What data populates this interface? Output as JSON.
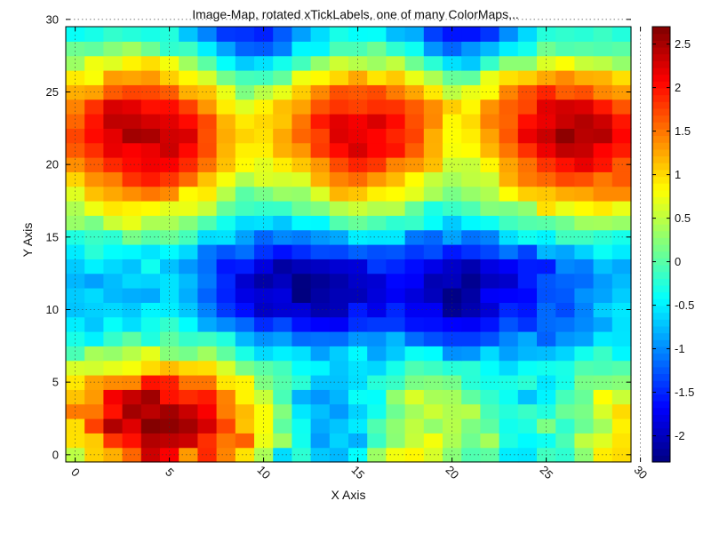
{
  "chart_data": {
    "type": "heatmap",
    "title": "Image-Map, rotated xTickLabels, one of many ColorMaps,..",
    "xlabel": "X Axis",
    "ylabel": "Y Axis",
    "xlim": [
      -0.5,
      29.5
    ],
    "ylim": [
      -0.5,
      29.5
    ],
    "xticks": [
      0,
      5,
      10,
      15,
      20,
      25,
      30
    ],
    "yticks": [
      0,
      5,
      10,
      15,
      20,
      25,
      30
    ],
    "xtick_rotation_deg": 45,
    "grid": true,
    "colormap": "jet",
    "colorbar": {
      "vmin": -2.3,
      "vmax": 2.7,
      "ticks": [
        -2,
        -1.5,
        -1,
        -0.5,
        0,
        0.5,
        1,
        1.5,
        2,
        2.5
      ],
      "tick_labels": [
        "-2",
        "-1.5",
        "-1",
        "-0.5",
        "0",
        "0.5",
        "1",
        "1.5",
        "2",
        "2.5"
      ]
    },
    "grid_size": [
      30,
      30
    ],
    "values": [
      [
        0.49,
        1.05,
        1.21,
        1.58,
        2.32,
        2.1,
        1.32,
        1.88,
        1.43,
        0.96,
        0.41,
        -0.59,
        -0.21,
        -0.69,
        -0.77,
        -0.42,
        0.34,
        0.76,
        0.86,
        0.63,
        0.24,
        -0.04,
        0.03,
        -0.51,
        -0.54,
        -0.11,
        -0.2,
        0.26,
        0.91,
        0.99
      ],
      [
        0.97,
        1.08,
        1.82,
        2.0,
        2.45,
        2.4,
        2.33,
        1.85,
        1.49,
        1.61,
        0.73,
        0.35,
        -0.34,
        -0.91,
        -0.64,
        -0.81,
        -0.14,
        0.25,
        0.54,
        0.77,
        0.42,
        0.12,
        0.39,
        -0.29,
        -0.44,
        -0.36,
        -0.06,
        0.51,
        0.66,
        0.95
      ],
      [
        0.98,
        1.76,
        2.46,
        2.23,
        2.68,
        2.63,
        2.52,
        2.28,
        1.73,
        1.12,
        0.8,
        0.04,
        -0.36,
        -0.83,
        -0.71,
        -0.52,
        -0.04,
        0.27,
        0.51,
        0.29,
        0.46,
        0.19,
        0.03,
        -0.34,
        -0.28,
        0.19,
        -0.19,
        0.1,
        0.37,
        0.89
      ],
      [
        1.48,
        1.49,
        1.99,
        2.53,
        2.41,
        2.53,
        2.34,
        2.1,
        1.46,
        1.16,
        0.8,
        0.21,
        -0.54,
        -0.74,
        -0.92,
        -0.64,
        -0.34,
        0.11,
        0.38,
        0.57,
        0.44,
        0.47,
        -0.07,
        -0.25,
        -0.15,
        -0.27,
        0.09,
        0.17,
        0.63,
        1.0
      ],
      [
        1.12,
        1.32,
        2.12,
        2.35,
        2.54,
        1.99,
        1.87,
        1.95,
        1.44,
        0.88,
        0.55,
        -0.07,
        -0.8,
        -0.94,
        -0.79,
        -0.39,
        -0.41,
        0.29,
        0.64,
        0.4,
        0.38,
        0.04,
        -0.18,
        -0.37,
        -0.73,
        -0.48,
        -0.08,
        0.08,
        0.82,
        0.56
      ],
      [
        0.94,
        1.27,
        1.39,
        1.41,
        1.99,
        1.93,
        1.5,
        1.5,
        0.94,
        0.87,
        0.19,
        -0.02,
        -0.22,
        -0.71,
        -0.72,
        -0.58,
        -0.24,
        -0.15,
        0.17,
        0.21,
        0.15,
        -0.23,
        -0.33,
        -0.3,
        -0.22,
        -0.54,
        -0.32,
        0.16,
        0.19,
        0.23
      ],
      [
        0.63,
        0.6,
        0.7,
        0.78,
        1.0,
        1.15,
        1.01,
        0.98,
        0.63,
        0.17,
        0.01,
        -0.1,
        -0.41,
        -0.46,
        -0.7,
        -0.56,
        -0.62,
        -0.32,
        -0.05,
        -0.13,
        -0.24,
        -0.22,
        -0.41,
        -0.6,
        -0.39,
        -0.34,
        -0.3,
        -0.04,
        -0.07,
        -0.02
      ],
      [
        -0.06,
        0.39,
        0.31,
        0.47,
        0.7,
        0.23,
        0.15,
        0.36,
        0.04,
        -0.3,
        -0.6,
        -0.49,
        -0.57,
        -0.89,
        -0.67,
        -0.45,
        -0.87,
        -0.69,
        -0.38,
        -0.43,
        -0.97,
        -0.94,
        -0.6,
        -0.89,
        -0.78,
        -0.75,
        -0.63,
        -0.34,
        -0.15,
        -0.46
      ],
      [
        -0.31,
        -0.49,
        -0.17,
        0.03,
        -0.27,
        0.03,
        -0.17,
        -0.13,
        -0.27,
        -0.77,
        -0.96,
        -0.89,
        -1.15,
        -1.12,
        -1.14,
        -0.94,
        -0.97,
        -0.78,
        -1.15,
        -1.29,
        -1.38,
        -1.38,
        -1.28,
        -1.02,
        -0.84,
        -1.2,
        -0.94,
        -0.88,
        -0.52,
        -0.55
      ],
      [
        -0.51,
        -0.7,
        -0.4,
        -0.58,
        -0.34,
        -0.18,
        -0.43,
        -0.84,
        -1.0,
        -1.17,
        -1.47,
        -1.32,
        -1.6,
        -1.68,
        -1.71,
        -1.45,
        -1.4,
        -1.4,
        -1.59,
        -1.61,
        -1.68,
        -1.71,
        -1.58,
        -1.27,
        -1.43,
        -1.15,
        -1.11,
        -1.0,
        -0.86,
        -0.56
      ],
      [
        -0.71,
        -0.65,
        -0.61,
        -0.69,
        -0.47,
        -0.51,
        -0.7,
        -1.04,
        -1.4,
        -1.61,
        -1.95,
        -1.88,
        -1.86,
        -2.06,
        -2.02,
        -1.55,
        -1.78,
        -1.49,
        -1.73,
        -1.73,
        -2.2,
        -2.06,
        -1.88,
        -1.49,
        -1.57,
        -1.16,
        -1.31,
        -1.04,
        -0.66,
        -0.54
      ],
      [
        -0.68,
        -0.6,
        -0.77,
        -0.82,
        -0.85,
        -0.56,
        -0.82,
        -1.19,
        -1.51,
        -1.8,
        -1.88,
        -1.84,
        -2.32,
        -2.12,
        -2.03,
        -2.02,
        -1.85,
        -1.72,
        -1.85,
        -2.0,
        -2.27,
        -2.12,
        -1.71,
        -1.68,
        -1.65,
        -1.28,
        -1.24,
        -0.96,
        -0.87,
        -0.67
      ],
      [
        -0.78,
        -0.89,
        -0.75,
        -0.61,
        -0.64,
        -0.56,
        -0.76,
        -1.08,
        -1.48,
        -1.91,
        -2.11,
        -1.99,
        -2.29,
        -2.19,
        -2.08,
        -1.94,
        -1.89,
        -1.65,
        -1.7,
        -2.05,
        -2.0,
        -2.22,
        -1.99,
        -1.93,
        -1.54,
        -1.26,
        -1.18,
        -1.14,
        -0.91,
        -0.76
      ],
      [
        -0.68,
        -0.49,
        -0.61,
        -0.72,
        -0.35,
        -0.73,
        -0.93,
        -1.13,
        -1.57,
        -1.54,
        -1.83,
        -2.13,
        -2.02,
        -1.97,
        -1.89,
        -1.86,
        -1.4,
        -1.49,
        -1.62,
        -1.79,
        -1.94,
        -2.06,
        -1.81,
        -1.71,
        -1.54,
        -1.55,
        -1.01,
        -1.06,
        -0.73,
        -0.85
      ],
      [
        -0.52,
        -0.23,
        -0.41,
        -0.45,
        -0.55,
        -0.44,
        -0.61,
        -1.09,
        -1.26,
        -1.13,
        -1.43,
        -1.6,
        -1.46,
        -1.31,
        -1.33,
        -1.2,
        -1.29,
        -1.26,
        -1.4,
        -1.3,
        -1.56,
        -1.44,
        -1.33,
        -1.1,
        -1.35,
        -0.78,
        -0.86,
        -0.64,
        -0.38,
        -0.52
      ],
      [
        -0.28,
        -0.15,
        -0.21,
        0.16,
        -0.01,
        0.09,
        -0.09,
        -0.59,
        -0.56,
        -0.88,
        -1.18,
        -1.01,
        -1.07,
        -0.93,
        -0.85,
        -0.5,
        -0.54,
        -0.53,
        -1.09,
        -1.17,
        -0.87,
        -1.12,
        -1.04,
        -0.57,
        -0.36,
        -0.47,
        -0.11,
        -0.12,
        -0.22,
        -0.32
      ],
      [
        0.32,
        0.17,
        0.57,
        0.71,
        0.42,
        0.41,
        0.22,
        -0.04,
        -0.34,
        -0.59,
        -0.56,
        -0.7,
        -0.44,
        -0.45,
        -0.03,
        0.08,
        -0.05,
        -0.2,
        -0.16,
        -0.4,
        -0.68,
        -0.45,
        -0.37,
        -0.11,
        -0.02,
        0.01,
        0.13,
        0.36,
        0.38,
        0.32
      ],
      [
        0.43,
        0.74,
        0.94,
        0.88,
        0.84,
        0.7,
        0.72,
        0.55,
        0.07,
        -0.1,
        -0.16,
        -0.15,
        0.1,
        0.2,
        0.46,
        0.57,
        0.45,
        0.47,
        0.06,
        -0.29,
        -0.15,
        -0.05,
        0.22,
        0.18,
        0.28,
        0.97,
        0.72,
        0.84,
        0.93,
        0.72
      ],
      [
        0.67,
        1.13,
        1.25,
        1.38,
        1.49,
        1.4,
        0.84,
        0.92,
        0.46,
        0.01,
        0.16,
        0.33,
        0.3,
        0.65,
        1.19,
        1.11,
        0.89,
        0.83,
        0.69,
        0.4,
        0.17,
        0.31,
        0.43,
        0.82,
        1.06,
        1.1,
        1.23,
        1.26,
        1.4,
        1.4
      ],
      [
        1.03,
        1.37,
        1.46,
        1.83,
        1.95,
        1.81,
        1.55,
        1.12,
        0.78,
        0.44,
        0.65,
        0.61,
        0.65,
        1.21,
        1.44,
        1.55,
        1.33,
        1.16,
        0.83,
        0.54,
        0.39,
        0.51,
        0.57,
        1.21,
        1.47,
        1.57,
        1.73,
        1.69,
        1.49,
        1.64
      ],
      [
        1.38,
        1.63,
        1.88,
        2.03,
        2.13,
        2.09,
        1.87,
        1.51,
        1.13,
        0.84,
        0.69,
        0.91,
        1.1,
        1.33,
        1.71,
        1.91,
        1.81,
        1.43,
        1.34,
        1.14,
        0.56,
        0.54,
        0.86,
        1.27,
        1.52,
        1.83,
        2.0,
        2.18,
        1.98,
        1.64
      ],
      [
        1.64,
        1.85,
        2.18,
        2.09,
        2.17,
        2.33,
        2.04,
        1.7,
        1.19,
        0.9,
        0.9,
        1.21,
        1.34,
        1.79,
        2.03,
        2.27,
        2.06,
        1.98,
        1.62,
        1.21,
        0.79,
        0.83,
        1.18,
        1.5,
        1.84,
        2.16,
        2.39,
        2.35,
        2.07,
        1.95
      ],
      [
        1.74,
        2.03,
        2.2,
        2.53,
        2.49,
        2.3,
        2.26,
        1.69,
        1.23,
        1.04,
        0.97,
        1.25,
        1.58,
        1.75,
        2.24,
        2.16,
        2.06,
        1.9,
        1.75,
        1.22,
        0.82,
        0.91,
        1.28,
        1.65,
        2.17,
        2.34,
        2.63,
        2.42,
        2.45,
        2.06
      ],
      [
        1.58,
        1.98,
        2.39,
        2.38,
        2.28,
        2.21,
        2.03,
        1.72,
        1.19,
        0.93,
        1.02,
        1.11,
        1.5,
        1.96,
        2.21,
        2.12,
        2.26,
        2.03,
        1.69,
        1.41,
        0.85,
        1.0,
        1.45,
        1.59,
        2.01,
        2.17,
        2.34,
        2.45,
        2.32,
        1.97
      ],
      [
        1.44,
        1.84,
        2.26,
        2.2,
        2.0,
        2.02,
        1.76,
        1.34,
        0.91,
        0.67,
        0.88,
        1.14,
        1.28,
        1.67,
        1.82,
        1.76,
        1.85,
        1.83,
        1.63,
        1.39,
        1.07,
        0.86,
        1.36,
        1.61,
        1.73,
        2.21,
        2.29,
        2.24,
        1.96,
        1.67
      ],
      [
        1.22,
        1.28,
        1.63,
        1.74,
        1.72,
        1.63,
        1.21,
        1.12,
        0.72,
        0.19,
        0.48,
        0.71,
        1.07,
        1.41,
        1.69,
        1.65,
        1.71,
        1.47,
        1.26,
        0.93,
        0.5,
        0.72,
        0.81,
        1.43,
        1.69,
        1.9,
        1.62,
        1.69,
        1.41,
        1.31
      ],
      [
        0.92,
        0.8,
        1.31,
        1.27,
        1.33,
        1.06,
        0.85,
        0.62,
        0.14,
        -0.08,
        -0.11,
        0.06,
        0.75,
        0.85,
        1.02,
        1.26,
        0.95,
        1.09,
        0.72,
        0.43,
        0.07,
        0.04,
        0.72,
        0.97,
        1.06,
        1.25,
        1.4,
        1.22,
        1.2,
        0.98
      ],
      [
        0.34,
        0.75,
        0.67,
        0.88,
        0.98,
        0.77,
        0.36,
        0.02,
        -0.41,
        -0.68,
        -0.56,
        -0.33,
        -0.1,
        0.3,
        0.58,
        0.47,
        0.35,
        0.52,
        0.11,
        -0.22,
        -0.57,
        -0.69,
        -0.17,
        0.26,
        0.26,
        0.65,
        0.81,
        0.55,
        0.49,
        0.3
      ],
      [
        0.11,
        0.05,
        0.23,
        0.36,
        0.11,
        -0.19,
        -0.13,
        -0.5,
        -0.87,
        -1.19,
        -1.23,
        -1.05,
        -0.46,
        -0.47,
        -0.06,
        -0.06,
        0.11,
        -0.2,
        -0.36,
        -0.95,
        -1.18,
        -0.94,
        -0.77,
        -0.5,
        -0.34,
        0.12,
        -0.04,
        0.0,
        -0.04,
        0.01
      ],
      [
        -0.39,
        -0.31,
        -0.18,
        -0.25,
        -0.31,
        -0.26,
        -0.71,
        -1.03,
        -1.4,
        -1.43,
        -1.52,
        -1.23,
        -0.89,
        -0.59,
        -0.31,
        -0.41,
        -0.4,
        -0.75,
        -0.82,
        -1.36,
        -1.58,
        -1.58,
        -1.42,
        -0.98,
        -0.61,
        -0.25,
        -0.19,
        -0.23,
        -0.14,
        -0.26
      ]
    ]
  }
}
